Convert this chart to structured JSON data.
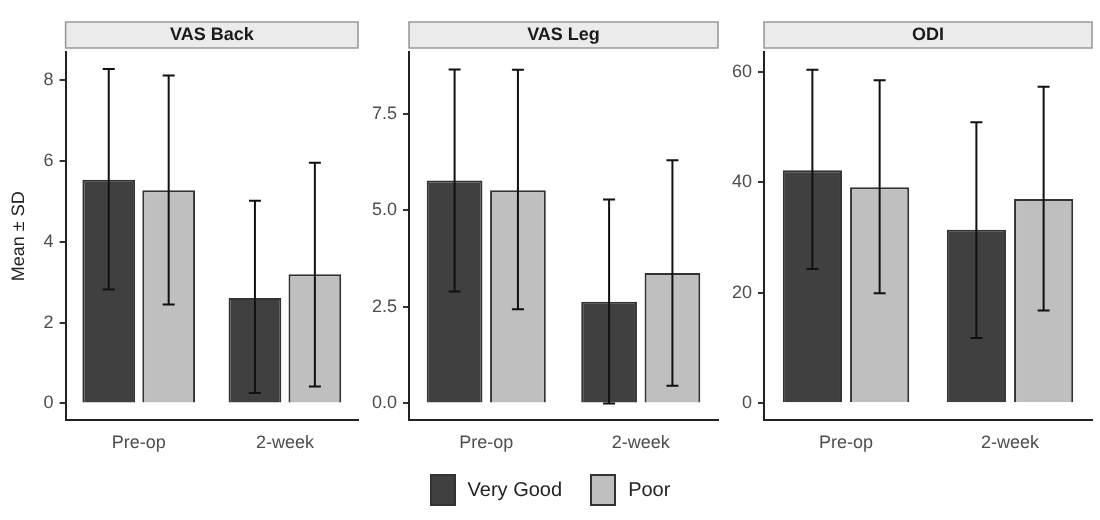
{
  "chart_data": [
    {
      "type": "bar",
      "title": "VAS Back",
      "ylabel": "Mean ± SD",
      "categories": [
        "Pre-op",
        "2-week"
      ],
      "ylim": [
        -0.42,
        8.7
      ],
      "yticks": [
        0,
        2,
        4,
        6,
        8
      ],
      "grid": false,
      "legend": "bottom",
      "series": [
        {
          "name": "Very Good",
          "color": "#404040",
          "values": [
            5.54,
            2.61
          ],
          "errors": [
            [
              2.82,
              8.28
            ],
            [
              0.26,
              5.02
            ]
          ]
        },
        {
          "name": "Poor",
          "color": "#bfbfbf",
          "values": [
            5.28,
            3.2
          ],
          "errors": [
            [
              2.45,
              8.12
            ],
            [
              0.42,
              5.96
            ]
          ]
        }
      ]
    },
    {
      "type": "bar",
      "title": "VAS Leg",
      "categories": [
        "Pre-op",
        "2-week"
      ],
      "ylim": [
        -0.44,
        9.1
      ],
      "yticks": [
        {
          "value": 0,
          "label": "0.0"
        },
        {
          "value": 2.5,
          "label": "2.5"
        },
        {
          "value": 5,
          "label": "5.0"
        },
        {
          "value": 7.5,
          "label": "7.5"
        }
      ],
      "grid": false,
      "series": [
        {
          "color": "#404040",
          "values": [
            5.77,
            2.63
          ],
          "errors": [
            [
              2.9,
              8.65
            ],
            [
              0,
              5.28
            ]
          ]
        },
        {
          "color": "#bfbfbf",
          "values": [
            5.52,
            3.38
          ],
          "errors": [
            [
              2.44,
              8.64
            ],
            [
              0.46,
              6.3
            ]
          ]
        }
      ]
    },
    {
      "type": "bar",
      "title": "ODI",
      "categories": [
        "Pre-op",
        "2-week"
      ],
      "ylim": [
        -3.1,
        63.6
      ],
      "yticks": [
        0,
        20,
        40,
        60
      ],
      "grid": false,
      "series": [
        {
          "color": "#404040",
          "values": [
            42.2,
            31.4
          ],
          "errors": [
            [
              24.3,
              60.4
            ],
            [
              11.8,
              50.9
            ]
          ]
        },
        {
          "color": "#bfbfbf",
          "values": [
            39.1,
            37
          ],
          "errors": [
            [
              19.9,
              58.5
            ],
            [
              16.8,
              57.3
            ]
          ]
        }
      ]
    }
  ]
}
